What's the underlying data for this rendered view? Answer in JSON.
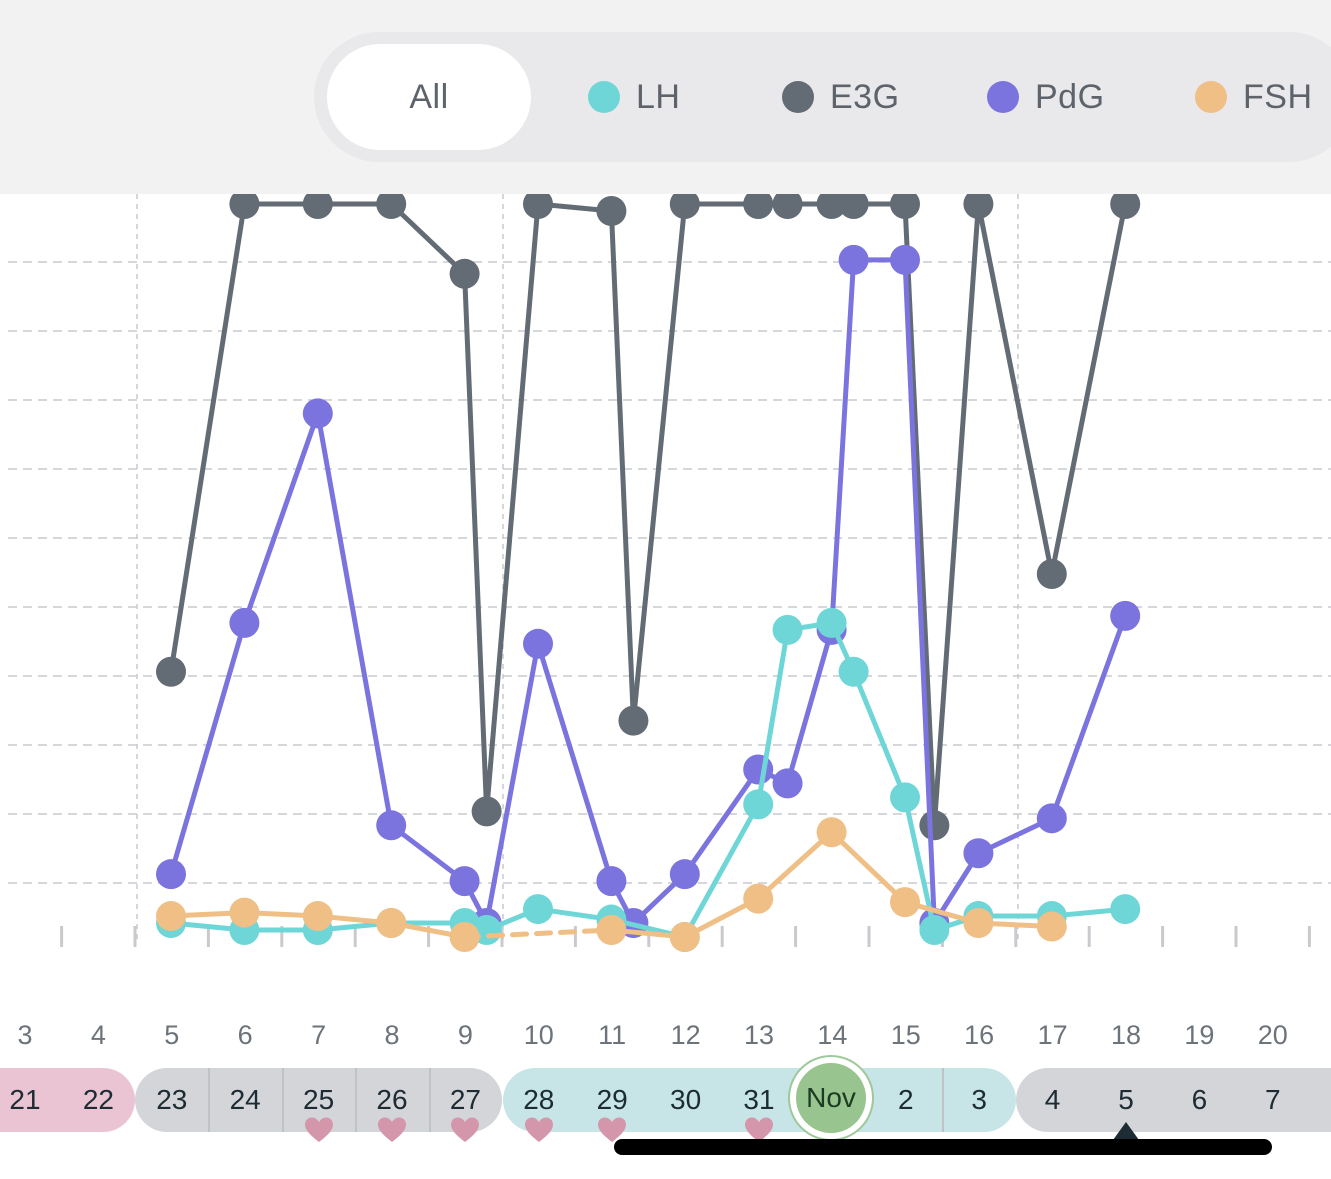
{
  "filters": [
    {
      "label": "All",
      "active": true,
      "color": null
    },
    {
      "label": "LH",
      "active": false,
      "color": "#6fd6d8"
    },
    {
      "label": "E3G",
      "active": false,
      "color": "#636b74"
    },
    {
      "label": "PdG",
      "active": false,
      "color": "#7b74df"
    },
    {
      "label": "FSH",
      "active": false,
      "color": "#efbf85"
    }
  ],
  "colors": {
    "LH": "#6fd6d8",
    "E3G": "#636b74",
    "PdG": "#7b74df",
    "FSH": "#efbf85",
    "period_band": "#ebc4d3",
    "luteal_band": "#d3d5d9",
    "fertile_band": "#c7e5e6",
    "today_fill": "#98c48f",
    "heart": "#d496ab"
  },
  "day_labels": [
    "3",
    "4",
    "5",
    "6",
    "7",
    "8",
    "9",
    "10",
    "11",
    "12",
    "13",
    "14",
    "15",
    "16",
    "17",
    "18",
    "19",
    "20"
  ],
  "cycle_days": [
    "21",
    "22",
    "23",
    "24",
    "25",
    "26",
    "27",
    "28",
    "29",
    "30",
    "31",
    "Nov",
    "2",
    "3",
    "4",
    "5",
    "6",
    "7"
  ],
  "today_label": "Nov",
  "chart_data": {
    "type": "line",
    "x": [
      5,
      6,
      7,
      8,
      9,
      9.3,
      10,
      11,
      11.3,
      12,
      13,
      13.4,
      14,
      14.3,
      15,
      15.4,
      16,
      17,
      18
    ],
    "ylim": [
      0,
      10.5
    ],
    "grid": true,
    "series": [
      {
        "name": "E3G",
        "values": [
          3.8,
          10.5,
          10.5,
          10.5,
          9.5,
          1.8,
          10.5,
          10.4,
          3.1,
          10.5,
          10.5,
          10.5,
          10.5,
          10.5,
          10.5,
          1.6,
          10.5,
          5.2,
          10.5
        ]
      },
      {
        "name": "PdG",
        "values": [
          0.9,
          4.5,
          7.5,
          1.6,
          0.8,
          0.2,
          4.2,
          0.8,
          0.2,
          0.9,
          2.4,
          2.2,
          4.4,
          9.7,
          9.7,
          0.2,
          1.2,
          1.7,
          4.6
        ]
      },
      {
        "name": "LH",
        "values": [
          0.2,
          0.1,
          0.1,
          0.2,
          0.2,
          0.1,
          0.4,
          0.25,
          null,
          0,
          1.9,
          4.4,
          4.5,
          3.8,
          2.0,
          0.1,
          0.3,
          0.3,
          0.4
        ]
      },
      {
        "name": "FSH",
        "values": [
          0.3,
          0.35,
          0.3,
          0.2,
          0,
          null,
          null,
          0.1,
          null,
          0,
          0.55,
          null,
          1.5,
          null,
          0.5,
          null,
          0.2,
          0.15,
          null
        ]
      }
    ]
  }
}
